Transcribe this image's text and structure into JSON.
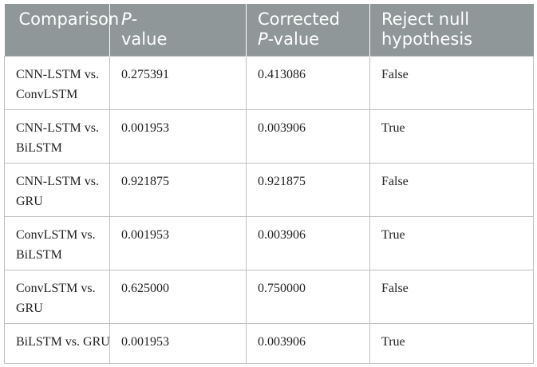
{
  "table": {
    "headers": [
      {
        "lines": [
          "Comparison"
        ]
      },
      {
        "lines": [
          "P-",
          "value"
        ],
        "italic_part": "P"
      },
      {
        "lines": [
          "Corrected",
          "P-value"
        ],
        "italic_part": "P"
      },
      {
        "lines": [
          "Reject null",
          "hypothesis"
        ]
      }
    ],
    "header_text": {
      "comparison": "Comparison",
      "p_value_1": "P",
      "p_value_1_suffix": "-",
      "p_value_2": "value",
      "corrected_1": "Corrected",
      "corrected_2_italic": "P",
      "corrected_2_suffix": "-value",
      "reject_1": "Reject null",
      "reject_2": "hypothesis"
    },
    "rows": [
      {
        "comparison": [
          "CNN-LSTM vs.",
          "ConvLSTM"
        ],
        "p_value": "0.275391",
        "corrected_p_value": "0.413086",
        "reject": "False"
      },
      {
        "comparison": [
          "CNN-LSTM vs.",
          "BiLSTM"
        ],
        "p_value": "0.001953",
        "corrected_p_value": "0.003906",
        "reject": "True"
      },
      {
        "comparison": [
          "CNN-LSTM vs.",
          "GRU"
        ],
        "p_value": "0.921875",
        "corrected_p_value": "0.921875",
        "reject": "False"
      },
      {
        "comparison": [
          "ConvLSTM vs.",
          "BiLSTM"
        ],
        "p_value": "0.001953",
        "corrected_p_value": "0.003906",
        "reject": "True"
      },
      {
        "comparison": [
          "ConvLSTM vs.",
          "GRU"
        ],
        "p_value": "0.625000",
        "corrected_p_value": "0.750000",
        "reject": "False"
      },
      {
        "comparison": [
          "BiLSTM vs. GRU"
        ],
        "p_value": "0.001953",
        "corrected_p_value": "0.003906",
        "reject": "True"
      }
    ],
    "colors": {
      "header_bg": "#8f9799",
      "header_text": "#ffffff",
      "border": "#bfbfbf",
      "body_text": "#222222"
    }
  }
}
